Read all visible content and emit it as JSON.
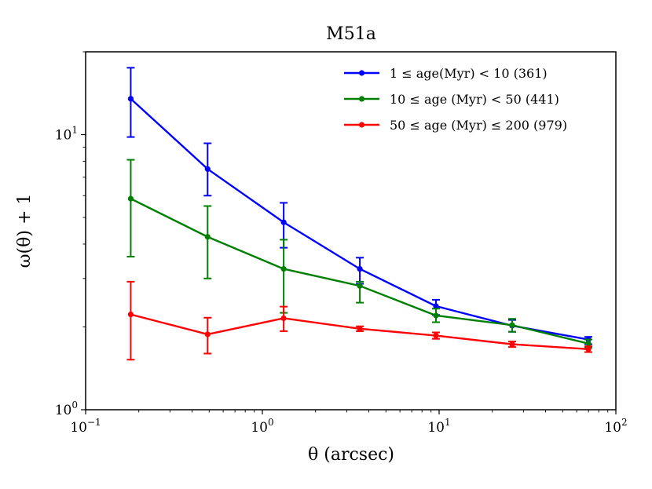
{
  "chart_data": {
    "type": "line",
    "title": "M51a",
    "xlabel": "θ (arcsec)",
    "ylabel": "ω(θ) + 1",
    "xscale": "log",
    "yscale": "log",
    "xlim": [
      0.1,
      100
    ],
    "ylim": [
      1,
      20
    ],
    "legend_position": "top-right",
    "x_ticks": [
      {
        "base": "10",
        "exp": "−1",
        "value": 0.1
      },
      {
        "base": "10",
        "exp": "0",
        "value": 1
      },
      {
        "base": "10",
        "exp": "1",
        "value": 10
      },
      {
        "base": "10",
        "exp": "2",
        "value": 100
      }
    ],
    "y_ticks": [
      {
        "base": "10",
        "exp": "0",
        "value": 1
      },
      {
        "base": "10",
        "exp": "1",
        "value": 10
      }
    ],
    "x": [
      0.18,
      0.49,
      1.32,
      3.56,
      9.6,
      25.9,
      69.9
    ],
    "series": [
      {
        "name": "1 ≤ age(Myr) < 10 (361)",
        "color": "#0000ff",
        "values": [
          13.5,
          7.5,
          4.8,
          3.25,
          2.38,
          2.02,
          1.8
        ],
        "err_low": [
          3.7,
          1.5,
          0.92,
          0.38,
          0.17,
          0.1,
          0.07
        ],
        "err_high": [
          4.0,
          1.8,
          0.85,
          0.32,
          0.13,
          0.1,
          0.04
        ]
      },
      {
        "name": "10 ≤ age (Myr) < 50 (441)",
        "color": "#008000",
        "values": [
          5.85,
          4.25,
          3.25,
          2.82,
          2.2,
          2.03,
          1.74
        ],
        "err_low": [
          2.25,
          1.25,
          1.0,
          0.37,
          0.12,
          0.11,
          0.06
        ],
        "err_high": [
          2.25,
          1.25,
          0.9,
          0.1,
          0.13,
          0.11,
          0.06
        ]
      },
      {
        "name": "50 ≤ age (Myr) ≤ 200 (979)",
        "color": "#ff0000",
        "values": [
          2.22,
          1.88,
          2.15,
          1.97,
          1.86,
          1.73,
          1.66
        ],
        "err_low": [
          0.7,
          0.28,
          0.22,
          0.04,
          0.05,
          0.04,
          0.04
        ],
        "err_high": [
          0.7,
          0.28,
          0.22,
          0.04,
          0.05,
          0.04,
          0.04
        ]
      }
    ]
  }
}
